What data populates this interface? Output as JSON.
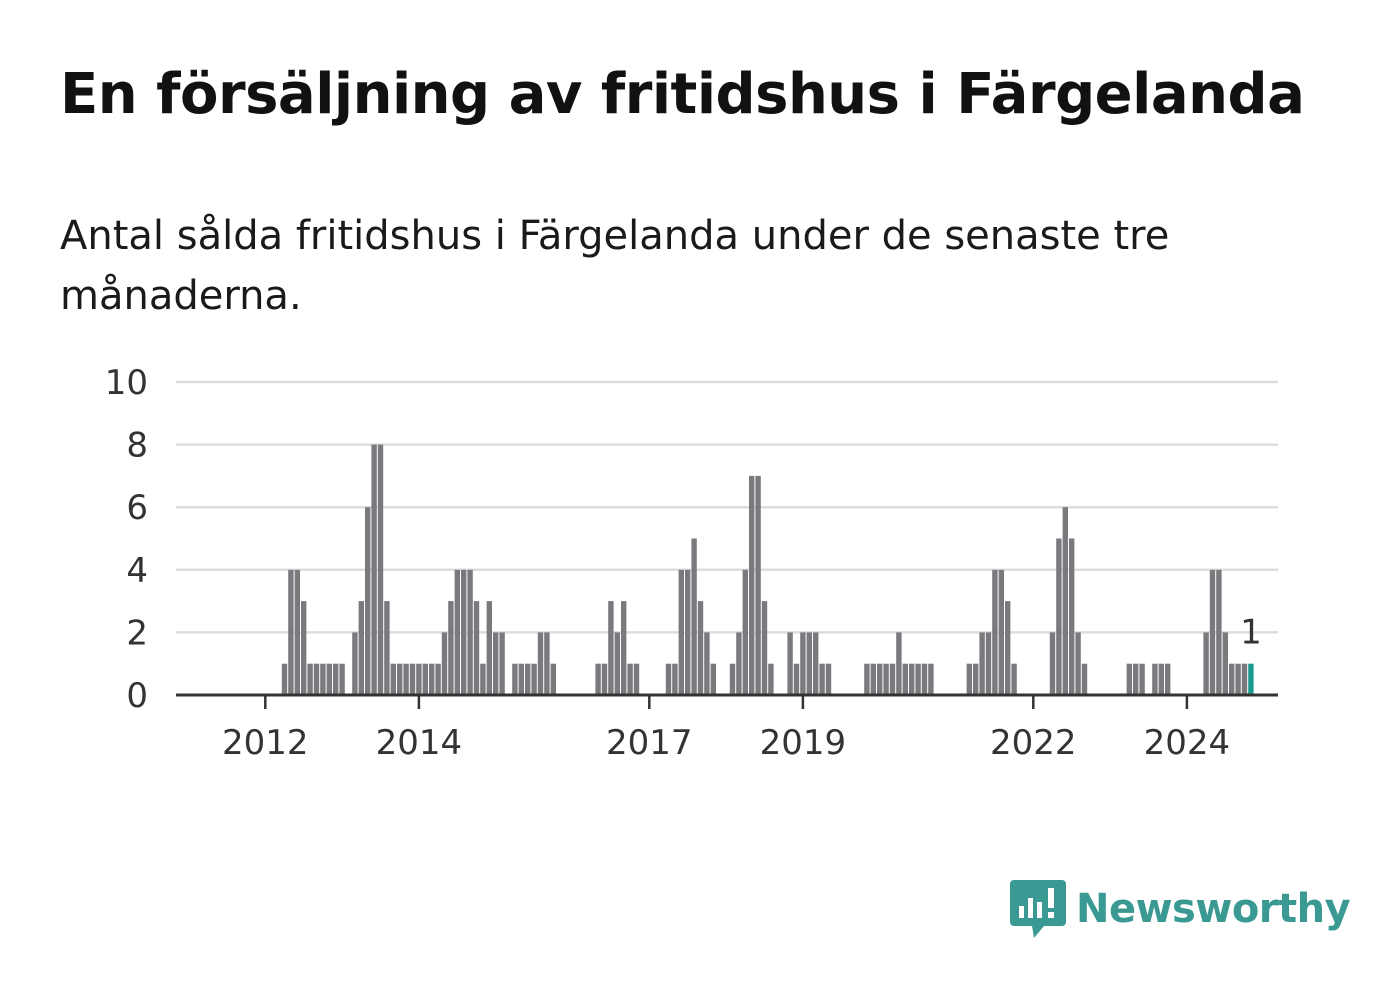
{
  "header": {
    "title": "En försäljning av fritidshus i Färgelanda",
    "subtitle": "Antal sålda fritidshus i Färgelanda under de senaste tre månaderna."
  },
  "brand": {
    "name": "Newsworthy",
    "icon": "newsworthy-logo-icon",
    "color": "#3a9a93"
  },
  "colors": {
    "bar": "#7a7a7e",
    "highlight": "#1d9a8f",
    "grid": "#dddddd",
    "axis": "#333333"
  },
  "chart_data": {
    "type": "bar",
    "title": "",
    "xlabel": "",
    "ylabel": "",
    "ylim": [
      0,
      10
    ],
    "yticks": [
      0,
      2,
      4,
      6,
      8,
      10
    ],
    "x_tick_labels": [
      {
        "label": "2012",
        "index": 9
      },
      {
        "label": "2014",
        "index": 33
      },
      {
        "label": "2017",
        "index": 69
      },
      {
        "label": "2019",
        "index": 93
      },
      {
        "label": "2022",
        "index": 129
      },
      {
        "label": "2024",
        "index": 153
      }
    ],
    "values": [
      0,
      0,
      0,
      0,
      0,
      0,
      0,
      0,
      0,
      0,
      0,
      0,
      1,
      4,
      4,
      3,
      1,
      1,
      1,
      1,
      1,
      1,
      0,
      2,
      3,
      6,
      8,
      8,
      3,
      1,
      1,
      1,
      1,
      1,
      1,
      1,
      1,
      2,
      3,
      4,
      4,
      4,
      3,
      1,
      3,
      2,
      2,
      0,
      1,
      1,
      1,
      1,
      2,
      2,
      1,
      0,
      0,
      0,
      0,
      0,
      0,
      1,
      1,
      3,
      2,
      3,
      1,
      1,
      0,
      0,
      0,
      0,
      1,
      1,
      4,
      4,
      5,
      3,
      2,
      1,
      0,
      0,
      1,
      2,
      4,
      7,
      7,
      3,
      1,
      0,
      0,
      2,
      1,
      2,
      2,
      2,
      1,
      1,
      0,
      0,
      0,
      0,
      0,
      1,
      1,
      1,
      1,
      1,
      2,
      1,
      1,
      1,
      1,
      1,
      0,
      0,
      0,
      0,
      0,
      1,
      1,
      2,
      2,
      4,
      4,
      3,
      1,
      0,
      0,
      0,
      0,
      0,
      2,
      5,
      6,
      5,
      2,
      1,
      0,
      0,
      0,
      0,
      0,
      0,
      1,
      1,
      1,
      0,
      1,
      1,
      1,
      0,
      0,
      0,
      0,
      0,
      2,
      4,
      4,
      2,
      1,
      1,
      1,
      1
    ],
    "highlight_index": 163,
    "highlight_label": "1",
    "grid": true
  }
}
